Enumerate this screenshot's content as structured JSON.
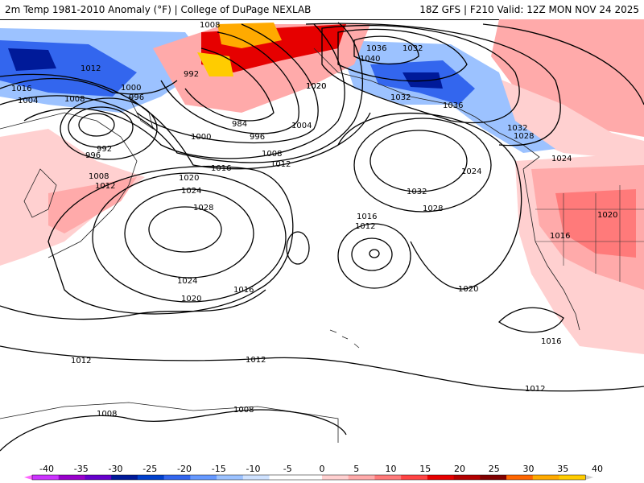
{
  "title": {
    "left": "2m Temp 1981-2010 Anomaly (°F) | College of DuPage NEXLAB",
    "right": "18Z GFS | F210 Valid: 12Z MON NOV 24 2025"
  },
  "isobar_labels": [
    "1008",
    "992",
    "1012",
    "1016",
    "1004",
    "1008",
    "996",
    "1000",
    "996",
    "992",
    "1008",
    "1012",
    "1000",
    "996",
    "984",
    "1004",
    "1008",
    "1016",
    "1012",
    "1020",
    "1024",
    "1028",
    "1024",
    "1020",
    "1016",
    "1020",
    "1040",
    "1036",
    "1032",
    "1020",
    "1032",
    "1036",
    "1032",
    "1028",
    "1024",
    "1024",
    "1032",
    "1028",
    "1016",
    "1012",
    "1020",
    "1016",
    "1020",
    "1016",
    "1012",
    "1012",
    "1012",
    "1008",
    "1008"
  ],
  "colorbar": {
    "ticks": [
      "-40",
      "-35",
      "-30",
      "-25",
      "-20",
      "-15",
      "-10",
      "-5",
      "0",
      "5",
      "10",
      "15",
      "20",
      "25",
      "30",
      "35",
      "40"
    ],
    "colors": [
      "#ff66ff",
      "#cc33ff",
      "#9900cc",
      "#6600cc",
      "#001a99",
      "#0040cc",
      "#3366ee",
      "#6699ff",
      "#9cc2ff",
      "#cfe2ff",
      "#ffffff",
      "#ffffff",
      "#ffd0d0",
      "#ffaaaa",
      "#ff7a7a",
      "#ff4444",
      "#e60000",
      "#b30000",
      "#800000",
      "#ff6600",
      "#ffaa00",
      "#ffcc00",
      "#cccccc"
    ]
  }
}
